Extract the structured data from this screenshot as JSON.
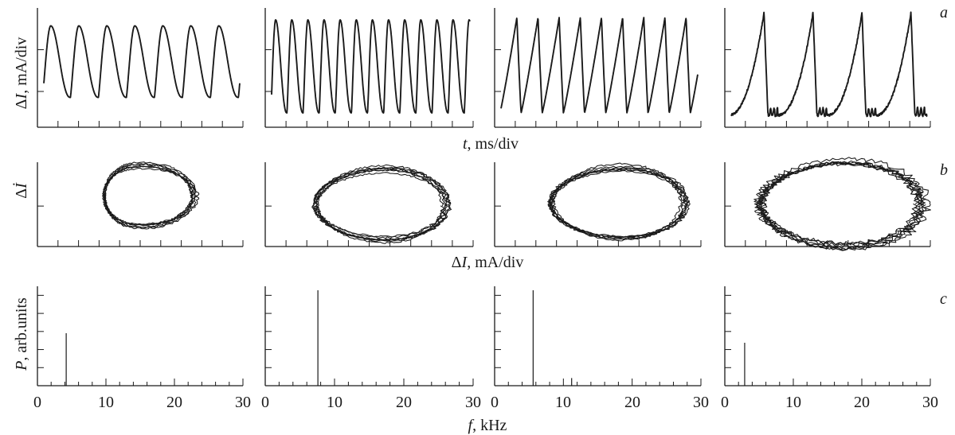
{
  "figure": {
    "row_letters": [
      "a",
      "b",
      "c"
    ],
    "row_a": {
      "ylabel_sym": "Δ",
      "ylabel_var": "I",
      "ylabel_unit": ", mA/div",
      "xlabel_var": "t",
      "xlabel_unit": ", ms/div"
    },
    "row_b": {
      "ylabel_sym": "Δ",
      "ylabel_var": "İ",
      "xlabel_sym": "Δ",
      "xlabel_var": "I",
      "xlabel_unit": ", mA/div"
    },
    "row_c": {
      "ylabel_var": "P",
      "ylabel_unit": ", arb.units",
      "xlabel_var": "f",
      "xlabel_unit": ", kHz",
      "tick_labels": [
        "0",
        "10",
        "20",
        "30"
      ]
    }
  },
  "chart_data": [
    {
      "type": "line",
      "row": "a",
      "panel": 1,
      "title": "",
      "xlabel": "t, ms/div",
      "ylabel": "ΔI, mA/div",
      "waveform": "smooth",
      "cycles": 7,
      "peak_level": 0.85,
      "trough_level": 0.25,
      "x_divisions": 10
    },
    {
      "type": "line",
      "row": "a",
      "panel": 2,
      "title": "",
      "xlabel": "t, ms/div",
      "ylabel": "ΔI, mA/div",
      "waveform": "smooth",
      "cycles": 12.3,
      "peak_level": 0.9,
      "trough_level": 0.12,
      "x_divisions": 10
    },
    {
      "type": "line",
      "row": "a",
      "panel": 3,
      "title": "",
      "xlabel": "t, ms/div",
      "ylabel": "ΔI, mA/div",
      "waveform": "sawtooth",
      "cycles": 9.3,
      "peak_level": 0.92,
      "trough_level": 0.12,
      "x_divisions": 10
    },
    {
      "type": "line",
      "row": "a",
      "panel": 4,
      "title": "",
      "xlabel": "t, ms/div",
      "ylabel": "ΔI, mA/div",
      "waveform": "relaxation",
      "cycles": 4,
      "peak_level": 0.96,
      "trough_level": 0.1,
      "x_divisions": 10
    },
    {
      "type": "scatter",
      "row": "b",
      "panel": 1,
      "title": "",
      "xlabel": "ΔI, mA/div",
      "ylabel": "Δİ",
      "shape": "phase portrait (limit cycle)",
      "x_range": [
        0.18,
        0.72
      ],
      "y_range": [
        0.25,
        0.95
      ],
      "x_divisions": 10
    },
    {
      "type": "scatter",
      "row": "b",
      "panel": 2,
      "title": "",
      "xlabel": "ΔI, mA/div",
      "ylabel": "Δİ",
      "shape": "phase portrait (limit cycle)",
      "x_range": [
        0.19,
        0.81
      ],
      "y_range": [
        0.1,
        0.9
      ],
      "x_divisions": 10
    },
    {
      "type": "scatter",
      "row": "b",
      "panel": 3,
      "title": "",
      "xlabel": "ΔI, mA/div",
      "ylabel": "Δİ",
      "shape": "phase portrait (limit cycle)",
      "x_range": [
        0.22,
        0.86
      ],
      "y_range": [
        0.1,
        0.93
      ],
      "x_divisions": 10
    },
    {
      "type": "scatter",
      "row": "b",
      "panel": 4,
      "title": "",
      "xlabel": "ΔI, mA/div",
      "ylabel": "Δİ",
      "shape": "phase portrait (limit cycle)",
      "x_range": [
        0.1,
        0.89
      ],
      "y_range": [
        0.02,
        0.98
      ],
      "x_divisions": 10
    },
    {
      "type": "bar",
      "row": "c",
      "panel": 1,
      "title": "",
      "xlabel": "f, kHz",
      "ylabel": "P, arb.units",
      "xlim": [
        0,
        30
      ],
      "ylim": [
        0,
        1
      ],
      "x": [
        4.2
      ],
      "values": [
        0.55
      ]
    },
    {
      "type": "bar",
      "row": "c",
      "panel": 2,
      "title": "",
      "xlabel": "f, kHz",
      "ylabel": "P, arb.units",
      "xlim": [
        0,
        30
      ],
      "ylim": [
        0,
        1
      ],
      "x": [
        7.6
      ],
      "values": [
        1.0
      ]
    },
    {
      "type": "bar",
      "row": "c",
      "panel": 3,
      "title": "",
      "xlabel": "f, kHz",
      "ylabel": "P, arb.units",
      "xlim": [
        0,
        30
      ],
      "ylim": [
        0,
        1
      ],
      "x": [
        5.6,
        11.2
      ],
      "values": [
        1.0,
        0.08
      ]
    },
    {
      "type": "bar",
      "row": "c",
      "panel": 4,
      "title": "",
      "xlabel": "f, kHz",
      "ylabel": "P, arb.units",
      "xlim": [
        0,
        30
      ],
      "ylim": [
        0,
        1
      ],
      "x": [
        2.9
      ],
      "values": [
        0.45
      ]
    }
  ]
}
